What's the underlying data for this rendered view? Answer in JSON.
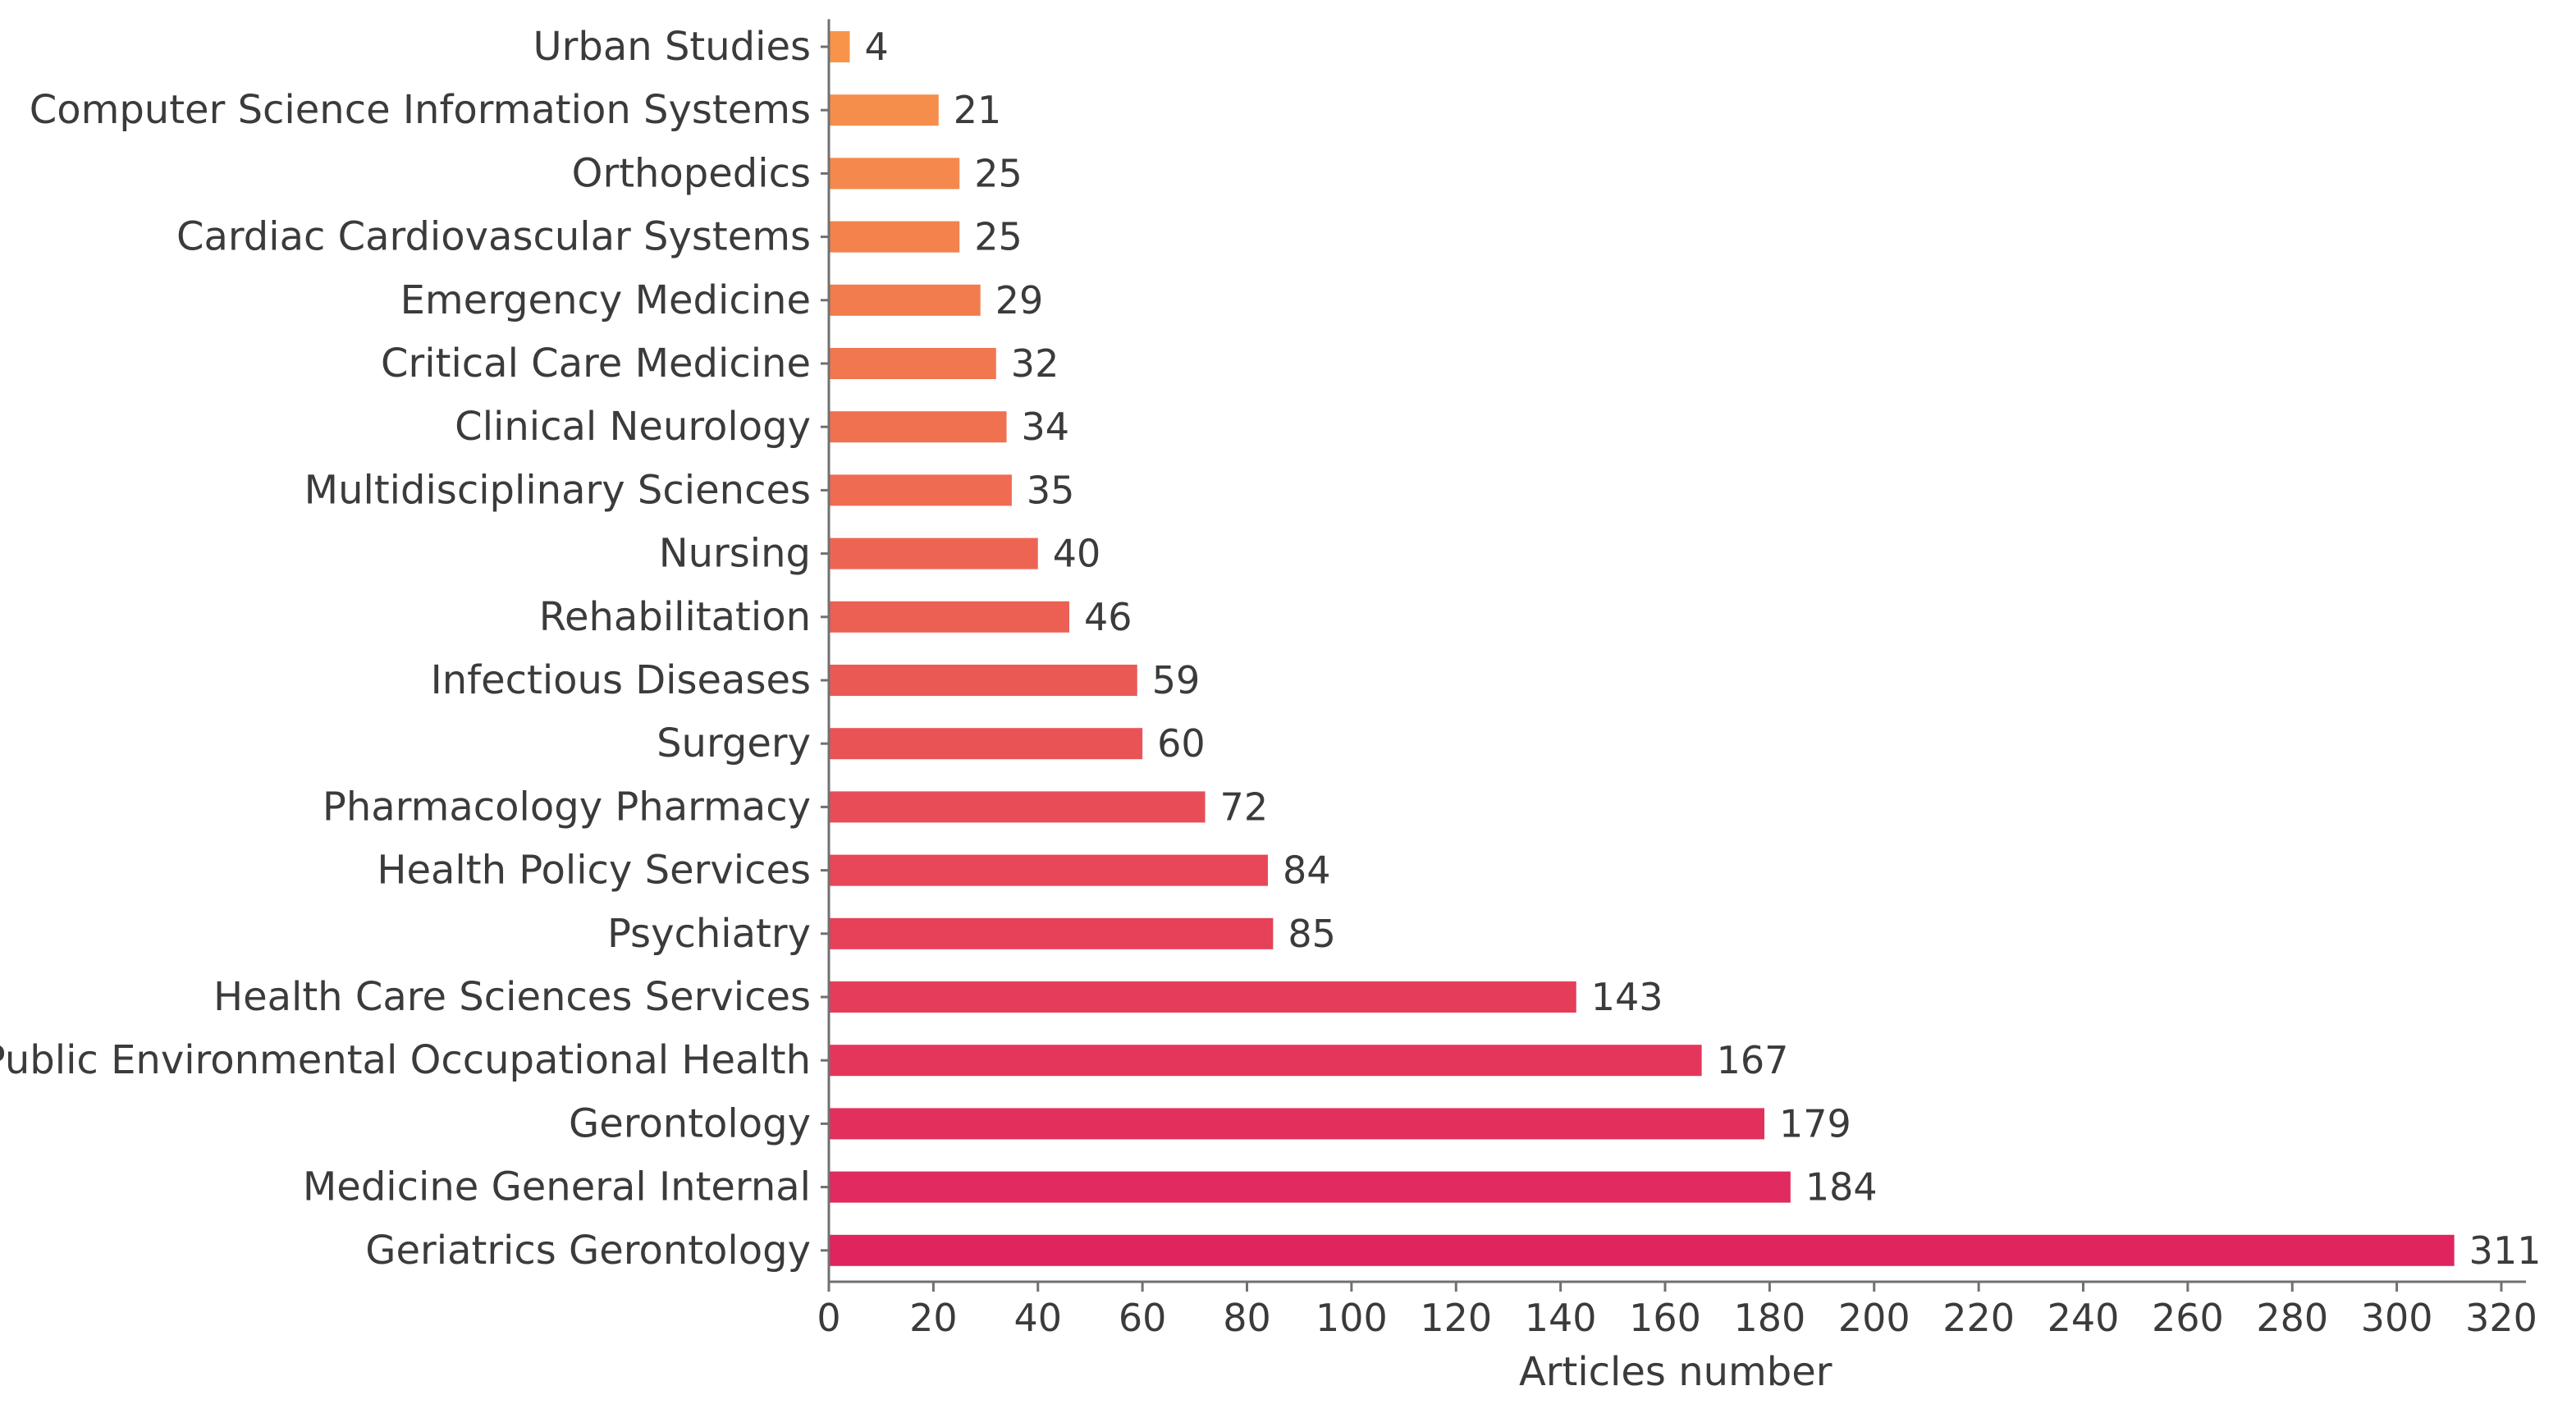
{
  "chart_data": {
    "type": "bar",
    "orientation": "horizontal",
    "title": "",
    "xlabel": "Articles number",
    "ylabel": "",
    "xlim": [
      0,
      320
    ],
    "x_ticks": [
      0,
      20,
      40,
      60,
      80,
      100,
      120,
      140,
      160,
      180,
      200,
      220,
      240,
      260,
      280,
      300,
      320
    ],
    "grid": false,
    "legend": "none",
    "categories": [
      "Urban Studies",
      "Computer Science Information Systems",
      "Orthopedics",
      "Cardiac Cardiovascular Systems",
      "Emergency Medicine",
      "Critical Care Medicine",
      "Clinical Neurology",
      "Multidisciplinary Sciences",
      "Nursing",
      "Rehabilitation",
      "Infectious Diseases",
      "Surgery",
      "Pharmacology Pharmacy",
      "Health Policy Services",
      "Psychiatry",
      "Health Care Sciences Services",
      "Public Environmental Occupational Health",
      "Gerontology",
      "Medicine General Internal",
      "Geriatrics Gerontology"
    ],
    "values": [
      4,
      21,
      25,
      25,
      29,
      32,
      34,
      35,
      40,
      46,
      59,
      60,
      72,
      84,
      85,
      143,
      167,
      179,
      184,
      311
    ],
    "color_gradient": [
      "#f7944a",
      "#e0245e"
    ]
  }
}
